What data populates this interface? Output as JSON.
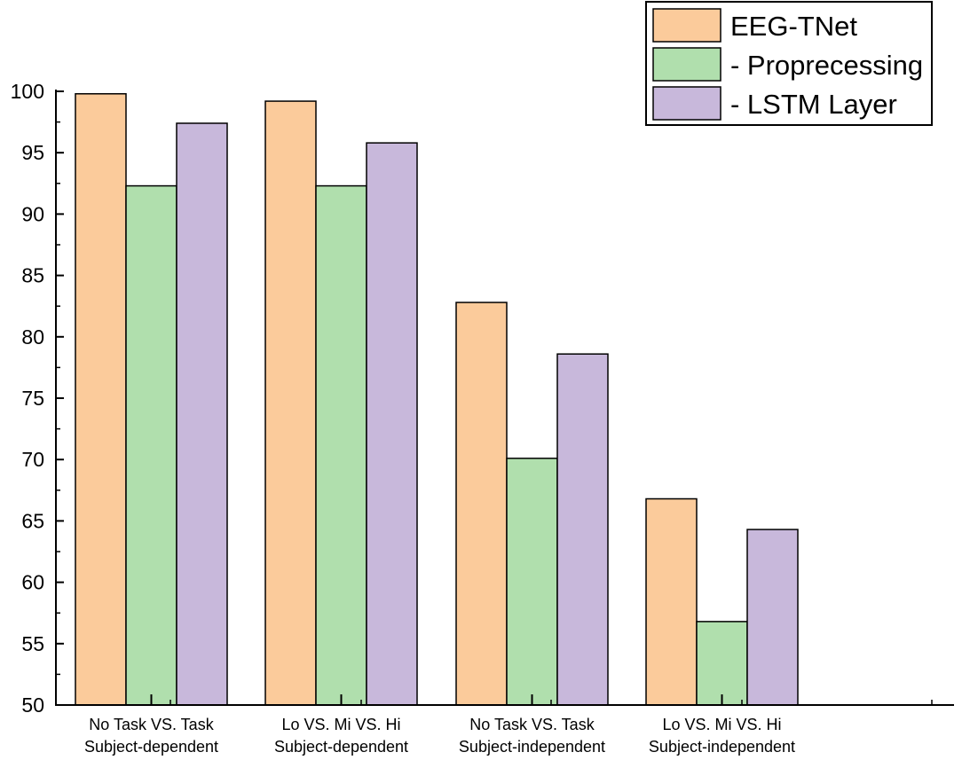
{
  "chart_data": {
    "type": "bar",
    "title": "",
    "xlabel": "",
    "ylabel": "",
    "categories": [
      [
        "No Task VS. Task",
        "Subject-dependent"
      ],
      [
        "Lo VS. Mi VS. Hi",
        "Subject-dependent"
      ],
      [
        "No Task VS. Task",
        "Subject-independent"
      ],
      [
        "Lo VS. Mi VS. Hi",
        "Subject-independent"
      ]
    ],
    "series": [
      {
        "name": "EEG-TNet",
        "color": "#FBCB9B",
        "values": [
          99.8,
          99.2,
          82.8,
          66.8
        ]
      },
      {
        "name": "- Proprecessing",
        "color": "#B0DFAD",
        "values": [
          92.3,
          92.3,
          70.1,
          56.8
        ]
      },
      {
        "name": "- LSTM Layer",
        "color": "#C8B8DB",
        "values": [
          97.4,
          95.8,
          78.6,
          64.3
        ]
      }
    ],
    "ylim": [
      50,
      100
    ],
    "yticks": [
      50,
      55,
      60,
      65,
      70,
      75,
      80,
      85,
      90,
      95,
      100
    ],
    "grid": false,
    "legend_position": "top-right"
  }
}
